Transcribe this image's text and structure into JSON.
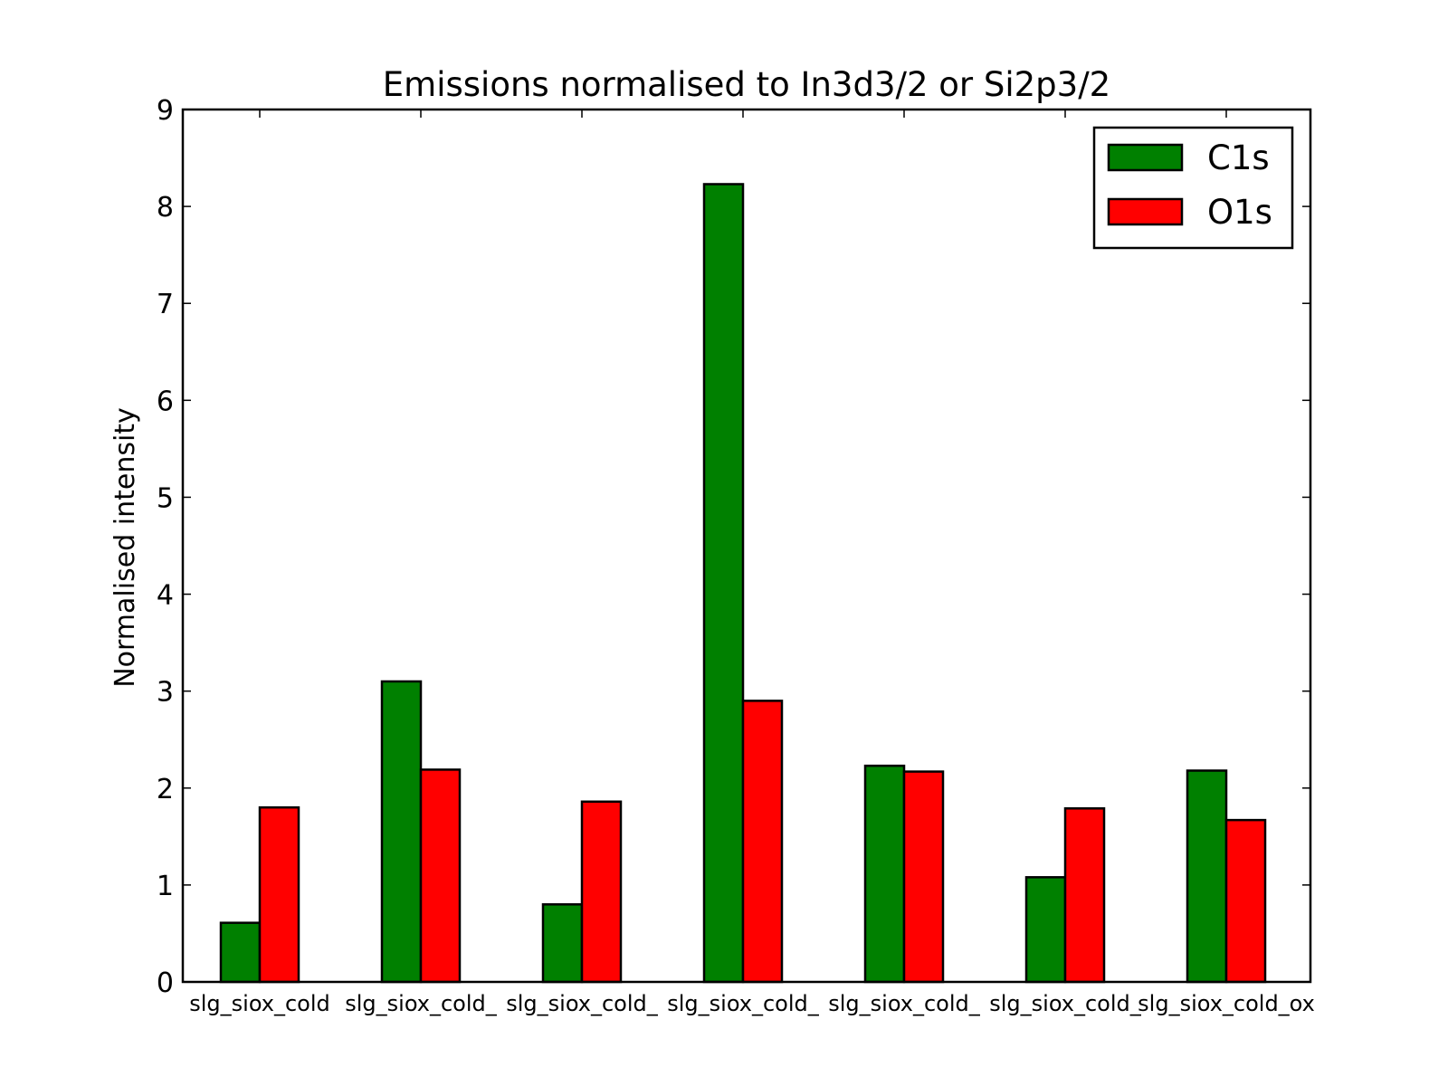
{
  "chart_data": {
    "type": "bar",
    "title": "Emissions normalised to In3d3/2 or Si2p3/2",
    "xlabel": "",
    "ylabel": "Normalised intensity",
    "ylim": [
      0,
      9
    ],
    "yticks": [
      "0",
      "1",
      "2",
      "3",
      "4",
      "5",
      "6",
      "7",
      "8",
      "9"
    ],
    "grid": false,
    "legend_position": "top-right",
    "categories": [
      "slg_siox_cold",
      "slg_siox_cold_",
      "slg_siox_cold_",
      "slg_siox_cold_",
      "slg_siox_cold_",
      "slg_siox_cold_",
      "slg_siox_cold_ox"
    ],
    "series": [
      {
        "name": "C1s",
        "color": "#008000",
        "values": [
          0.61,
          3.1,
          0.8,
          8.23,
          2.23,
          1.08,
          2.18
        ]
      },
      {
        "name": "O1s",
        "color": "#ff0000",
        "values": [
          1.8,
          2.19,
          1.86,
          2.9,
          2.17,
          1.79,
          1.67
        ]
      }
    ]
  }
}
